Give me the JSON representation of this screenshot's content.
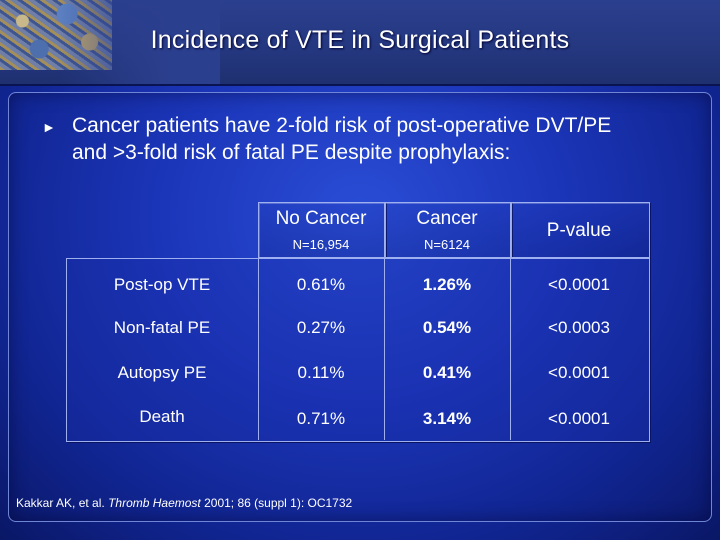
{
  "title": "Incidence of VTE in Surgical Patients",
  "bullet": {
    "line1": "Cancer patients have 2-fold risk of post-operative DVT/PE",
    "line2": "and >3-fold risk of fatal PE despite prophylaxis:"
  },
  "table": {
    "columns": [
      {
        "label": "No Cancer",
        "sub": "N=16,954"
      },
      {
        "label": "Cancer",
        "sub": "N=6124"
      },
      {
        "label": "P-value",
        "sub": ""
      }
    ],
    "rows": [
      {
        "label": "Post-op VTE",
        "no_cancer": "0.61%",
        "cancer": "1.26%",
        "p": "<0.0001"
      },
      {
        "label": "Non-fatal PE",
        "no_cancer": "0.27%",
        "cancer": "0.54%",
        "p": "<0.0003"
      },
      {
        "label": "Autopsy PE",
        "no_cancer": "0.11%",
        "cancer": "0.41%",
        "p": "<0.0001"
      },
      {
        "label": "Death",
        "no_cancer": "0.71%",
        "cancer": "3.14%",
        "p": "<0.0001"
      }
    ]
  },
  "citation": {
    "authors": "Kakkar AK, et al.",
    "journal": "Thromb Haemost",
    "details": "2001; 86 (suppl 1): OC1732"
  }
}
